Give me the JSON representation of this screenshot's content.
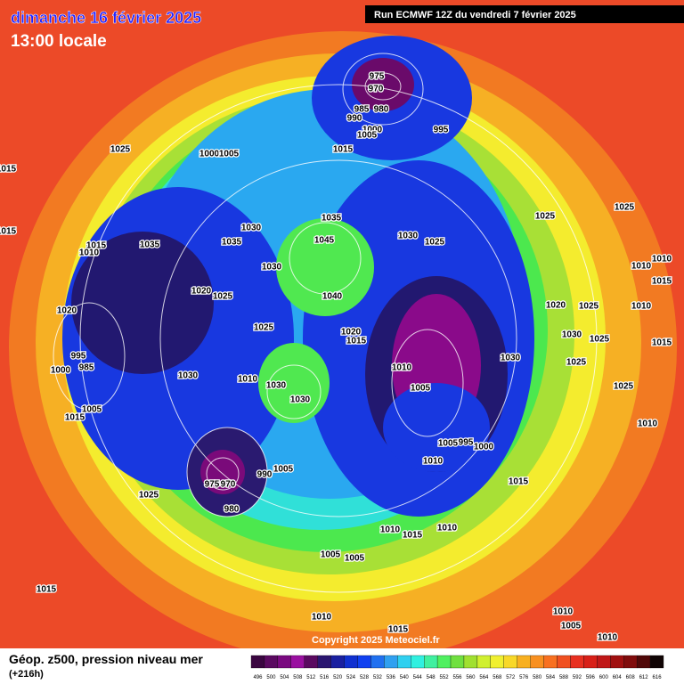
{
  "header": {
    "title": "dimanche 16 février 2025",
    "subtitle": "13:00 locale",
    "run": "Run ECMWF 12Z du vendredi 7 février 2025"
  },
  "footer": {
    "caption": "Géop. z500, pression niveau mer",
    "lead": "(+216h)",
    "copyright": "Copyright 2025 Meteociel.fr"
  },
  "legend": {
    "labels": [
      496,
      500,
      504,
      508,
      512,
      516,
      520,
      524,
      528,
      532,
      536,
      540,
      544,
      548,
      552,
      556,
      560,
      564,
      568,
      572,
      576,
      580,
      584,
      588,
      592,
      596,
      600,
      604,
      608,
      612,
      616
    ],
    "colors": [
      "#3a0640",
      "#5a0a60",
      "#7a0a80",
      "#9a10a0",
      "#5a0a60",
      "#2a1670",
      "#1a20a0",
      "#1030d0",
      "#1040f0",
      "#2070f0",
      "#30a0f0",
      "#30d0f0",
      "#30f0e0",
      "#40f0a0",
      "#50f060",
      "#70e040",
      "#a0e030",
      "#d0f030",
      "#f0f030",
      "#f8d828",
      "#f8b020",
      "#f89020",
      "#f87020",
      "#f05020",
      "#e83020",
      "#d82018",
      "#c01818",
      "#a01010",
      "#800c0c",
      "#500808",
      "#100404"
    ]
  },
  "isobars": [
    1025,
    1015,
    1015,
    1000,
    1005,
    975,
    970,
    985,
    980,
    990,
    1000,
    1005,
    995,
    1015,
    1035,
    1030,
    1030,
    1025,
    1045,
    1035,
    1035,
    1015,
    1010,
    1030,
    1020,
    1025,
    1040,
    1020,
    1025,
    1020,
    1015,
    995,
    985,
    1000,
    1030,
    1010,
    1010,
    1030,
    1005,
    1030,
    1005,
    1015,
    1005,
    995,
    1000,
    1010,
    975,
    970,
    990,
    1005,
    980,
    1025,
    1015,
    1010,
    1015,
    1010,
    1005,
    1005,
    1015,
    1010,
    1015,
    1010,
    1005,
    1010,
    1025,
    1025,
    1010,
    1010,
    1015,
    1020,
    1025,
    1010,
    1030,
    1025,
    1015,
    1030,
    1025,
    1025,
    1010
  ]
}
